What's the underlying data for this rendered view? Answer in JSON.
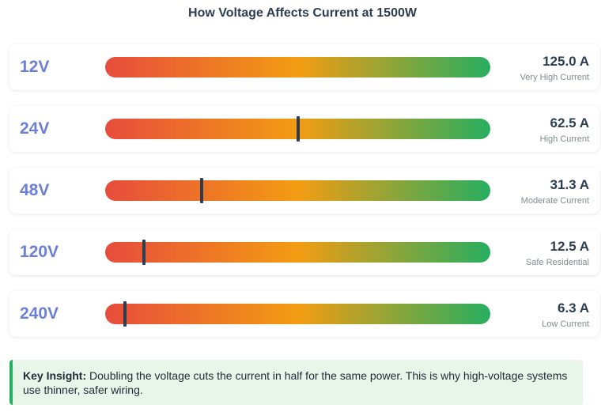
{
  "title": "How Voltage Affects Current at 1500W",
  "chart_data": {
    "type": "bar",
    "title": "How Voltage Affects Current at 1500W",
    "categories": [
      "12V",
      "24V",
      "48V",
      "120V",
      "240V"
    ],
    "values": [
      125.0,
      62.5,
      31.3,
      12.5,
      6.3
    ],
    "value_labels": [
      "125.0 A",
      "62.5 A",
      "31.3 A",
      "12.5 A",
      "6.3 A"
    ],
    "descriptions": [
      "Very High Current",
      "High Current",
      "Moderate Current",
      "Safe Residential",
      "Low Current"
    ],
    "max_value": 125.0,
    "gradient_colors": [
      "#e74c3c",
      "#f39c12",
      "#27ae60"
    ],
    "marker_color": "#2c3e50"
  },
  "insight": {
    "label": "Key Insight:",
    "text": " Doubling the voltage cuts the current in half for the same power. This is why high-voltage systems use thinner, safer wiring."
  },
  "colors": {
    "voltage_label": "#6b7fd7",
    "insight_border": "#27ae60",
    "insight_background": "#e8f5e9"
  }
}
